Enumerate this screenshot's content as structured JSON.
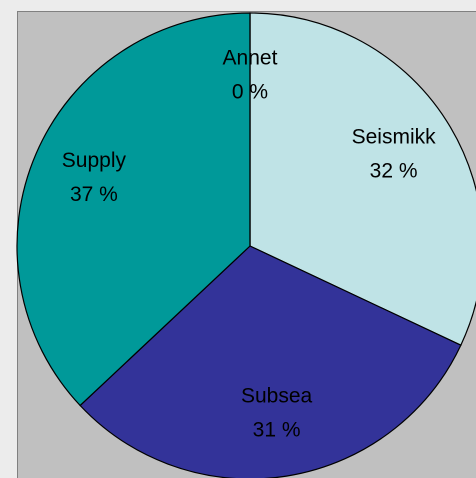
{
  "chart_data": {
    "type": "pie",
    "categories": [
      "Seismikk",
      "Subsea",
      "Supply",
      "Annet"
    ],
    "values": [
      32,
      31,
      37,
      0
    ],
    "value_labels": [
      "32 %",
      "31 %",
      "37 %",
      "0 %"
    ],
    "colors": [
      "#bfe3e6",
      "#333399",
      "#009999",
      "#e6e64c"
    ]
  }
}
